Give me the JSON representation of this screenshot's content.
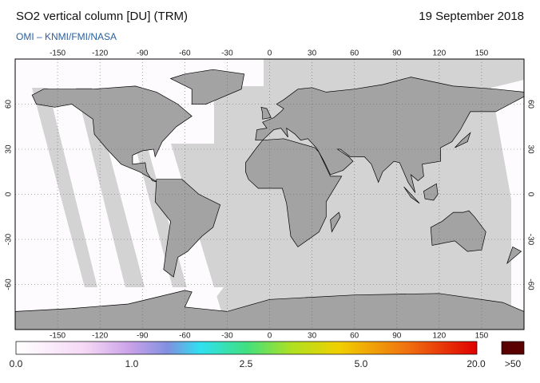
{
  "header": {
    "title": "SO2 vertical column [DU] (TRM)",
    "date": "19 September 2018",
    "source": "OMI  –  KNMI/FMI/NASA"
  },
  "map": {
    "lon_range": [
      -180,
      180
    ],
    "lat_range": [
      -90,
      90
    ],
    "lon_ticks": [
      -150,
      -120,
      -90,
      -60,
      -30,
      0,
      30,
      60,
      90,
      120,
      150
    ],
    "lat_ticks": [
      -60,
      -30,
      0,
      30,
      60
    ]
  },
  "colorbar": {
    "labels": [
      "0.0",
      "1.0",
      "2.5",
      "5.0",
      "20.0",
      ">50"
    ]
  }
}
